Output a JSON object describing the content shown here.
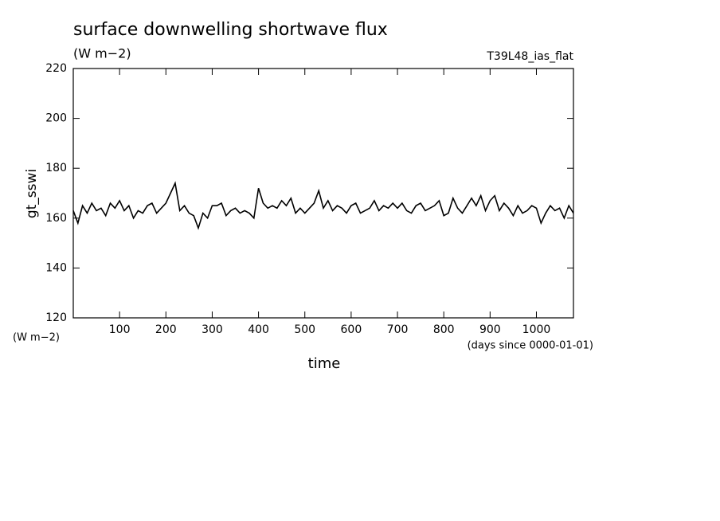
{
  "chart_data": {
    "type": "line",
    "title": "surface downwelling shortwave flux",
    "subtitle": "(W m−2)",
    "run_label": "T39L48_ias_flat",
    "y_label": "gt_sswi",
    "y_unit": "(W m−2)",
    "x_label": "time",
    "x_unit": "(days since 0000-01-01)",
    "color": "#000000",
    "xlim": [
      0,
      1080
    ],
    "xticks": [
      100,
      200,
      300,
      400,
      500,
      600,
      700,
      800,
      900,
      1000
    ],
    "ylim": [
      120,
      220
    ],
    "yticks": [
      120,
      140,
      160,
      180,
      200,
      220
    ],
    "x": [
      0,
      10,
      20,
      30,
      40,
      50,
      60,
      70,
      80,
      90,
      100,
      110,
      120,
      130,
      140,
      150,
      160,
      170,
      180,
      190,
      200,
      210,
      220,
      230,
      240,
      250,
      260,
      270,
      280,
      290,
      300,
      310,
      320,
      330,
      340,
      350,
      360,
      370,
      380,
      390,
      400,
      410,
      420,
      430,
      440,
      450,
      460,
      470,
      480,
      490,
      500,
      510,
      520,
      530,
      540,
      550,
      560,
      570,
      580,
      590,
      600,
      610,
      620,
      630,
      640,
      650,
      660,
      670,
      680,
      690,
      700,
      710,
      720,
      730,
      740,
      750,
      760,
      770,
      780,
      790,
      800,
      810,
      820,
      830,
      840,
      850,
      860,
      870,
      880,
      890,
      900,
      910,
      920,
      930,
      940,
      950,
      960,
      970,
      980,
      990,
      1000,
      1010,
      1020,
      1030,
      1040,
      1050,
      1060,
      1070,
      1080
    ],
    "values": [
      163,
      158,
      165,
      162,
      166,
      163,
      164,
      161,
      166,
      164,
      167,
      163,
      165,
      160,
      163,
      162,
      165,
      166,
      162,
      164,
      166,
      170,
      174,
      163,
      165,
      162,
      161,
      156,
      162,
      160,
      165,
      165,
      166,
      161,
      163,
      164,
      162,
      163,
      162,
      160,
      172,
      166,
      164,
      165,
      164,
      167,
      165,
      168,
      162,
      164,
      162,
      164,
      166,
      171,
      164,
      167,
      163,
      165,
      164,
      162,
      165,
      166,
      162,
      163,
      164,
      167,
      163,
      165,
      164,
      166,
      164,
      166,
      163,
      162,
      165,
      166,
      163,
      164,
      165,
      167,
      161,
      162,
      168,
      164,
      162,
      165,
      168,
      165,
      169,
      163,
      167,
      169,
      163,
      166,
      164,
      161,
      165,
      162,
      163,
      165,
      164,
      158,
      162,
      165,
      163,
      164,
      160,
      165,
      162
    ]
  }
}
